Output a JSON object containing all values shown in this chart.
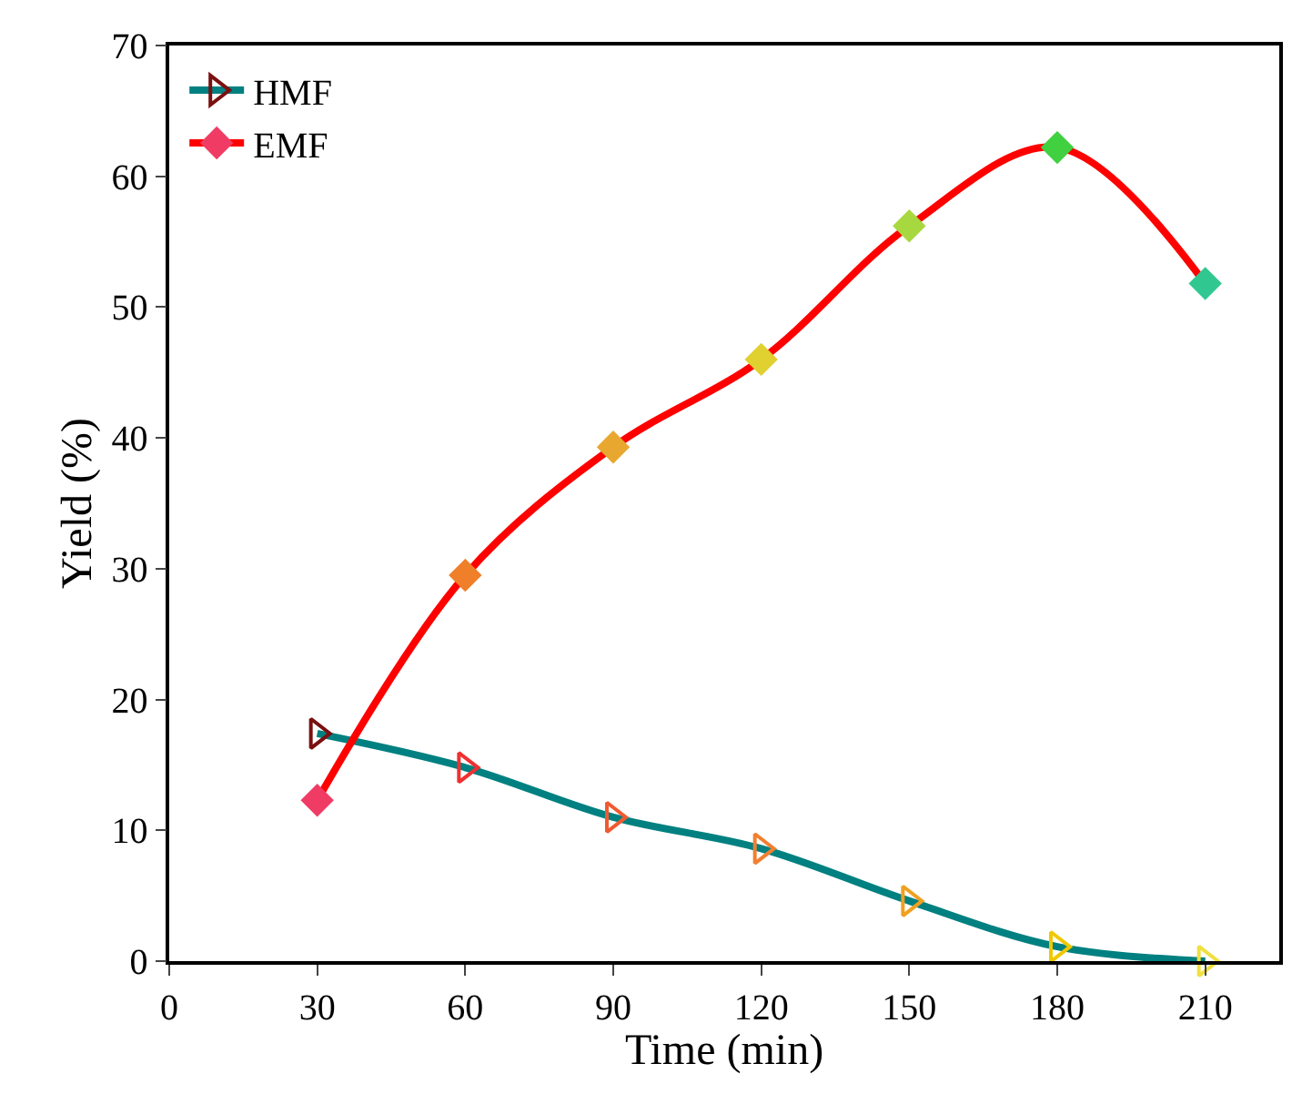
{
  "chart_data": {
    "type": "line",
    "xlabel": "Time (min)",
    "ylabel": "Yield (%)",
    "x": [
      30,
      60,
      90,
      120,
      150,
      180,
      210
    ],
    "series": [
      {
        "name": "HMF",
        "color": "#008080",
        "marker": "triangle",
        "values": [
          17.4,
          14.8,
          11,
          8.6,
          4.6,
          1.1,
          0
        ],
        "colors": [
          "#7a1010",
          "#f03030",
          "#f05a30",
          "#f08030",
          "#f0a020",
          "#f0c800",
          "#f0e040"
        ]
      },
      {
        "name": "EMF",
        "color": "#ff0000",
        "marker": "diamond",
        "values": [
          12.3,
          29.5,
          39.3,
          46,
          56.2,
          62.2,
          51.8
        ],
        "colors": [
          "#f03c64",
          "#f07f2a",
          "#e8a830",
          "#e0d030",
          "#a8d840",
          "#40d040",
          "#30c890"
        ]
      }
    ],
    "xlim": [
      0,
      225
    ],
    "xticks": [
      0,
      30,
      60,
      90,
      120,
      150,
      180,
      210
    ],
    "ylim": [
      0,
      70
    ],
    "yticks": [
      0,
      10,
      20,
      30,
      40,
      50,
      60,
      70
    ],
    "grid": false,
    "legend": "top left",
    "line_style": "solid"
  }
}
